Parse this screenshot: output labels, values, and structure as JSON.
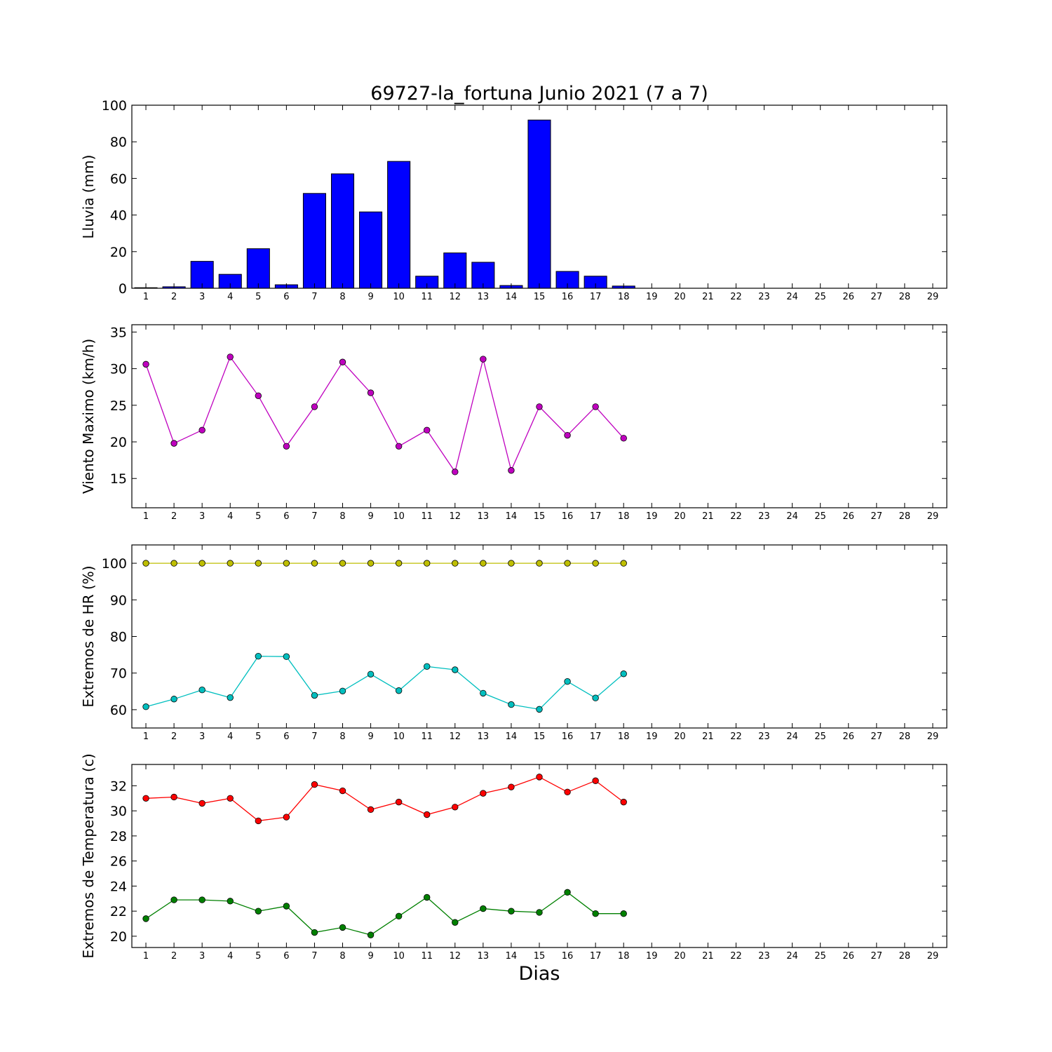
{
  "chart_data": {
    "title": "69727-la_fortuna Junio 2021  (7 a 7)",
    "xlabel": "Dias",
    "days": [
      1,
      2,
      3,
      4,
      5,
      6,
      7,
      8,
      9,
      10,
      11,
      12,
      13,
      14,
      15,
      16,
      17,
      18,
      19,
      20,
      21,
      22,
      23,
      24,
      25,
      26,
      27,
      28,
      29
    ],
    "panels": [
      {
        "type": "bar",
        "ylabel": "Lluvia (mm)",
        "ylim": [
          0,
          100
        ],
        "yticks": [
          0,
          20,
          40,
          60,
          80,
          100
        ],
        "series": [
          {
            "color": "#0000ff",
            "x": [
              1,
              2,
              3,
              4,
              5,
              6,
              7,
              8,
              9,
              10,
              11,
              12,
              13,
              14,
              15,
              16,
              17,
              18
            ],
            "values": [
              0.3,
              0.8,
              14.7,
              7.6,
              21.6,
              1.9,
              51.8,
              62.5,
              41.7,
              69.3,
              6.6,
              19.3,
              14.2,
              1.5,
              91.9,
              9.2,
              6.6,
              1.2
            ]
          }
        ]
      },
      {
        "type": "line",
        "ylabel": "Viento Maximo (km/h)",
        "ylim": [
          11,
          36
        ],
        "yticks": [
          15,
          20,
          25,
          30,
          35
        ],
        "series": [
          {
            "color": "#bf00bf",
            "x": [
              1,
              2,
              3,
              4,
              5,
              6,
              7,
              8,
              9,
              10,
              11,
              12,
              13,
              14,
              15,
              16,
              17,
              18
            ],
            "values": [
              30.6,
              19.8,
              21.6,
              31.6,
              26.3,
              19.4,
              24.8,
              30.9,
              26.7,
              19.4,
              21.6,
              15.9,
              31.3,
              16.1,
              24.8,
              20.9,
              24.8,
              20.5
            ]
          }
        ]
      },
      {
        "type": "line",
        "ylabel": "Extremos de HR (%)",
        "ylim": [
          55,
          105
        ],
        "yticks": [
          60,
          70,
          80,
          90,
          100
        ],
        "series": [
          {
            "color": "#bfbf00",
            "x": [
              1,
              2,
              3,
              4,
              5,
              6,
              7,
              8,
              9,
              10,
              11,
              12,
              13,
              14,
              15,
              16,
              17,
              18
            ],
            "values": [
              100,
              100,
              100,
              100,
              100,
              100,
              100,
              100,
              100,
              100,
              100,
              100,
              100,
              100,
              100,
              100,
              100,
              100
            ]
          },
          {
            "color": "#00bfbf",
            "x": [
              1,
              2,
              3,
              4,
              5,
              6,
              7,
              8,
              9,
              10,
              11,
              12,
              13,
              14,
              15,
              16,
              17,
              18
            ],
            "values": [
              60.8,
              62.9,
              65.4,
              63.3,
              74.6,
              74.5,
              63.9,
              65.1,
              69.7,
              65.2,
              71.8,
              70.9,
              64.5,
              61.4,
              60.1,
              67.7,
              63.2,
              69.8
            ]
          }
        ]
      },
      {
        "type": "line",
        "ylabel": "Extremos de Temperatura (c)",
        "ylim": [
          19.1,
          33.7
        ],
        "yticks": [
          20,
          22,
          24,
          26,
          28,
          30,
          32
        ],
        "series": [
          {
            "color": "#ff0000",
            "x": [
              1,
              2,
              3,
              4,
              5,
              6,
              7,
              8,
              9,
              10,
              11,
              12,
              13,
              14,
              15,
              16,
              17,
              18
            ],
            "values": [
              31.0,
              31.1,
              30.6,
              31.0,
              29.2,
              29.5,
              32.1,
              31.6,
              30.1,
              30.7,
              29.7,
              30.3,
              31.4,
              31.9,
              32.7,
              31.5,
              32.4,
              30.7
            ]
          },
          {
            "color": "#008000",
            "x": [
              1,
              2,
              3,
              4,
              5,
              6,
              7,
              8,
              9,
              10,
              11,
              12,
              13,
              14,
              15,
              16,
              17,
              18
            ],
            "values": [
              21.4,
              22.9,
              22.9,
              22.8,
              22.0,
              22.4,
              20.3,
              20.7,
              20.1,
              21.6,
              23.1,
              21.1,
              22.2,
              22.0,
              21.9,
              23.5,
              21.8,
              21.8
            ]
          }
        ]
      }
    ]
  }
}
